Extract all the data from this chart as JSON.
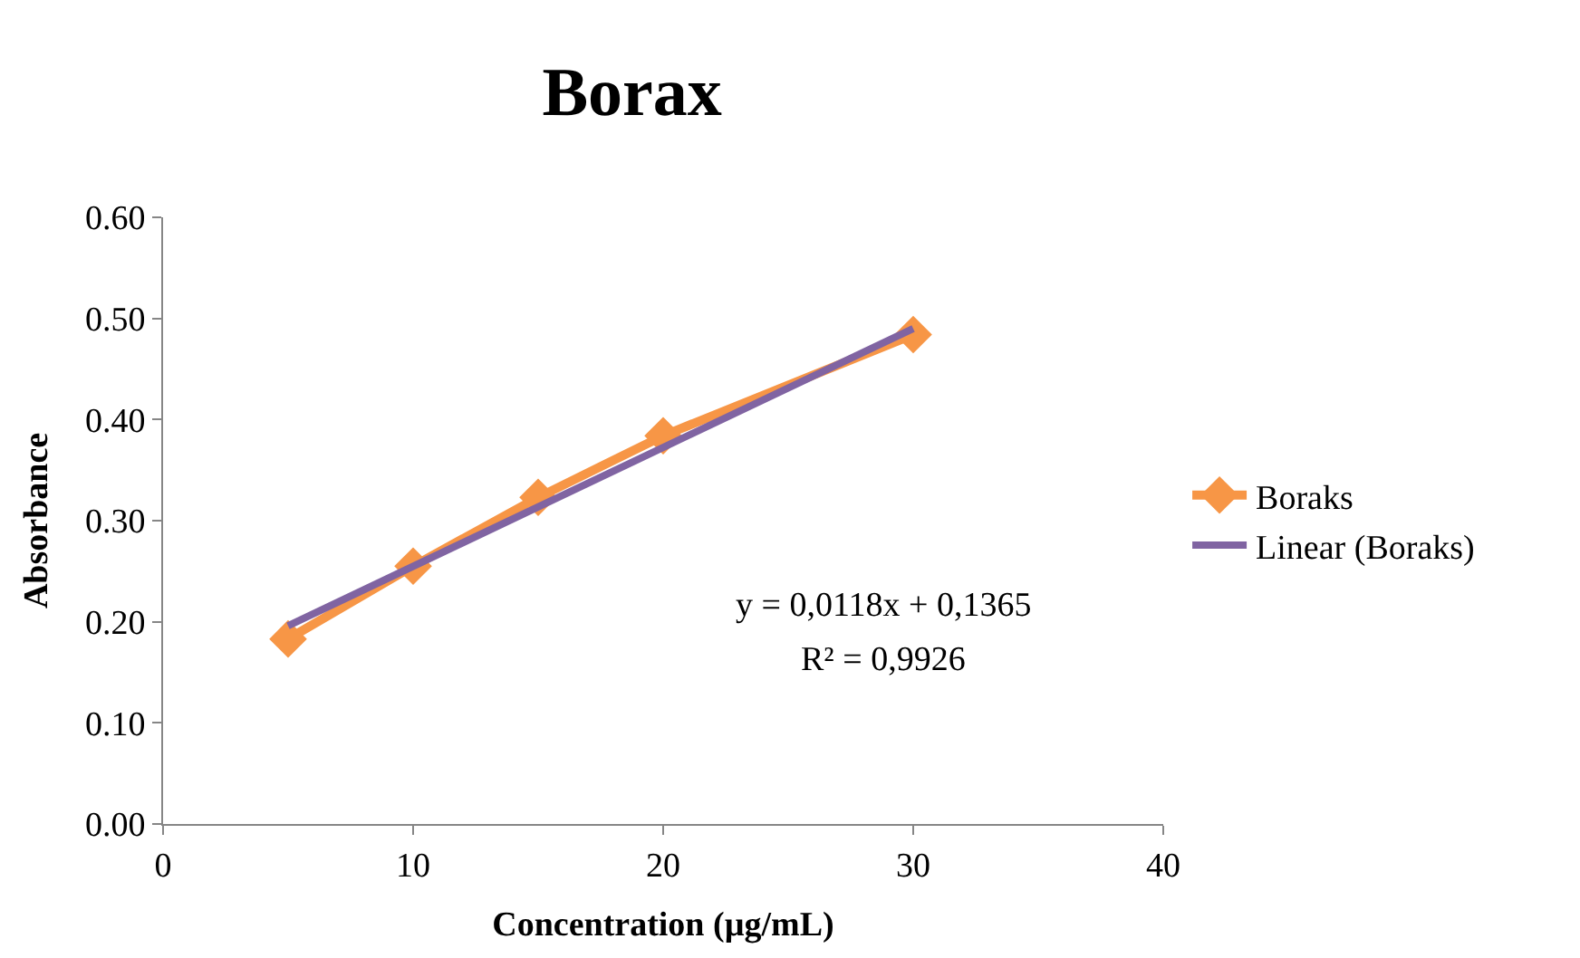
{
  "chart_data": {
    "type": "line",
    "title": "Borax",
    "xlabel": "Concentration (µg/mL)",
    "ylabel": "Absorbance",
    "x": [
      5,
      10,
      15,
      20,
      30
    ],
    "series": [
      {
        "name": "Boraks",
        "color": "#f79646",
        "values": [
          0.183,
          0.255,
          0.323,
          0.384,
          0.484
        ],
        "marker": "diamond",
        "line_style": "solid"
      },
      {
        "name": "Linear (Boraks)",
        "color": "#8064a2",
        "type": "line",
        "x": [
          5,
          30
        ],
        "values": [
          0.196,
          0.49
        ],
        "marker": "none",
        "line_style": "solid"
      }
    ],
    "xlim": [
      0,
      40
    ],
    "xticks": [
      0,
      10,
      20,
      30,
      40
    ],
    "ylim": [
      0,
      0.6
    ],
    "yticks": [
      {
        "value": 0,
        "label": "0.00"
      },
      {
        "value": 0.1,
        "label": "0.10"
      },
      {
        "value": 0.2,
        "label": "0.20"
      },
      {
        "value": 0.3,
        "label": "0.30"
      },
      {
        "value": 0.4,
        "label": "0.40"
      },
      {
        "value": 0.5,
        "label": "0.50"
      },
      {
        "value": 0.6,
        "label": "0.60"
      }
    ],
    "annotations": [
      "y = 0,0118x + 0,1365",
      "R² = 0,9926"
    ],
    "legend": "right"
  }
}
